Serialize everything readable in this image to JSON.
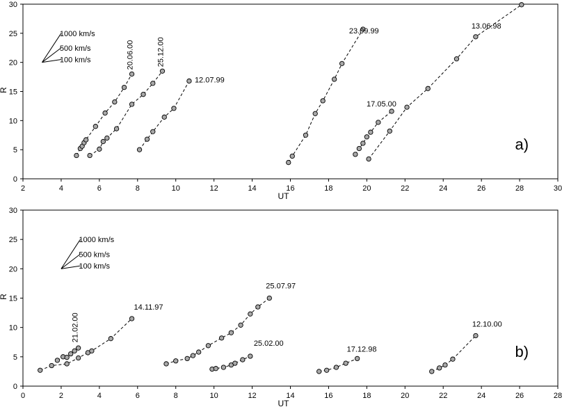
{
  "chart_data": [
    {
      "type": "scatter",
      "panel_label": "a)",
      "xlabel": "UT",
      "ylabel": "R",
      "xlim": [
        2,
        30
      ],
      "ylim": [
        0,
        30
      ],
      "xticks": [
        2,
        4,
        6,
        8,
        10,
        12,
        14,
        16,
        18,
        20,
        22,
        24,
        26,
        28,
        30
      ],
      "yticks": [
        0,
        5,
        10,
        15,
        20,
        25,
        30
      ],
      "grid": false,
      "reference_lines": {
        "origin": [
          3.0,
          20.0
        ],
        "lines": [
          {
            "label": "1000 km/s",
            "end": [
              4.0,
              25.0
            ]
          },
          {
            "label": "500 km/s",
            "end": [
              4.0,
              22.5
            ]
          },
          {
            "label": "100 km/s",
            "end": [
              4.0,
              20.5
            ]
          }
        ]
      },
      "series": [
        {
          "label": "20.06.00",
          "label_rotated": true,
          "x": [
            4.8,
            5.0,
            5.1,
            5.2,
            5.3,
            5.8,
            6.3,
            6.8,
            7.3,
            7.7
          ],
          "y": [
            4.0,
            5.2,
            5.6,
            6.2,
            6.7,
            9.0,
            11.3,
            13.2,
            15.7,
            18.0
          ]
        },
        {
          "label": "25.12.00",
          "label_rotated": true,
          "x": [
            5.5,
            6.0,
            6.2,
            6.4,
            6.9,
            7.7,
            8.3,
            8.8,
            9.3
          ],
          "y": [
            4.0,
            5.1,
            6.4,
            7.0,
            8.6,
            12.8,
            14.5,
            16.4,
            18.5
          ]
        },
        {
          "label": "12.07.99",
          "label_rotated": false,
          "x": [
            8.1,
            8.5,
            8.8,
            9.4,
            9.9,
            10.7
          ],
          "y": [
            5.0,
            6.8,
            8.1,
            10.6,
            12.1,
            16.8
          ]
        },
        {
          "label": "23.09.99",
          "label_rotated": false,
          "x": [
            15.9,
            16.1,
            16.8,
            17.3,
            17.7,
            18.3,
            18.7,
            19.8
          ],
          "y": [
            2.8,
            3.9,
            7.5,
            11.2,
            13.4,
            17.1,
            19.8,
            25.7
          ]
        },
        {
          "label": "17.05.00",
          "label_rotated": false,
          "x": [
            19.4,
            19.6,
            19.8,
            20.0,
            20.2,
            20.6,
            21.3
          ],
          "y": [
            4.2,
            5.2,
            6.1,
            7.2,
            8.0,
            9.7,
            11.6
          ]
        },
        {
          "label": "13.06.98",
          "label_rotated": false,
          "x": [
            20.1,
            21.2,
            22.1,
            23.2,
            24.7,
            25.7,
            28.1
          ],
          "y": [
            3.4,
            8.2,
            12.3,
            15.5,
            20.6,
            24.4,
            29.9
          ]
        }
      ]
    },
    {
      "type": "scatter",
      "panel_label": "b)",
      "xlabel": "UT",
      "ylabel": "R",
      "xlim": [
        0,
        28
      ],
      "ylim": [
        0,
        30
      ],
      "xticks": [
        0,
        2,
        4,
        6,
        8,
        10,
        12,
        14,
        16,
        18,
        20,
        22,
        24,
        26,
        28
      ],
      "yticks": [
        0,
        5,
        10,
        15,
        20,
        25,
        30
      ],
      "grid": false,
      "reference_lines": {
        "origin": [
          2.0,
          20.0
        ],
        "lines": [
          {
            "label": "1000 km/s",
            "end": [
              3.0,
              25.0
            ]
          },
          {
            "label": "500 km/s",
            "end": [
              3.0,
              22.5
            ]
          },
          {
            "label": "100 km/s",
            "end": [
              3.0,
              20.5
            ]
          }
        ]
      },
      "series": [
        {
          "label": "21.02.00",
          "label_rotated": true,
          "x": [
            1.8,
            2.1,
            2.3,
            2.5,
            2.7,
            2.9
          ],
          "y": [
            4.4,
            5.0,
            4.9,
            5.5,
            6.0,
            6.5
          ]
        },
        {
          "label": "14.11.97",
          "label_rotated": false,
          "x": [
            0.9,
            1.5,
            2.3,
            2.9,
            3.4,
            3.6,
            4.6,
            5.7
          ],
          "y": [
            2.7,
            3.5,
            3.8,
            4.8,
            5.7,
            6.0,
            8.1,
            11.5
          ]
        },
        {
          "label": "25.07.97",
          "label_rotated": false,
          "x": [
            7.5,
            8.0,
            8.6,
            8.9,
            9.2,
            9.7,
            10.4,
            10.9,
            11.4,
            11.9,
            12.3,
            12.9
          ],
          "y": [
            3.8,
            4.3,
            4.7,
            5.2,
            5.8,
            6.9,
            8.2,
            9.1,
            10.4,
            12.3,
            13.5,
            15.0
          ]
        },
        {
          "label": "25.02.00",
          "label_rotated": false,
          "x": [
            9.9,
            10.1,
            10.5,
            10.9,
            11.1,
            11.5,
            11.9
          ],
          "y": [
            2.9,
            3.0,
            3.2,
            3.6,
            3.9,
            4.5,
            5.1
          ]
        },
        {
          "label": "17.12.98",
          "label_rotated": false,
          "x": [
            15.5,
            15.9,
            16.4,
            16.9,
            17.5
          ],
          "y": [
            2.5,
            2.7,
            3.2,
            3.9,
            4.7
          ]
        },
        {
          "label": "12.10.00",
          "label_rotated": false,
          "x": [
            21.4,
            21.8,
            22.1,
            22.5,
            23.7
          ],
          "y": [
            2.5,
            3.1,
            3.6,
            4.6,
            8.6
          ]
        }
      ]
    }
  ]
}
